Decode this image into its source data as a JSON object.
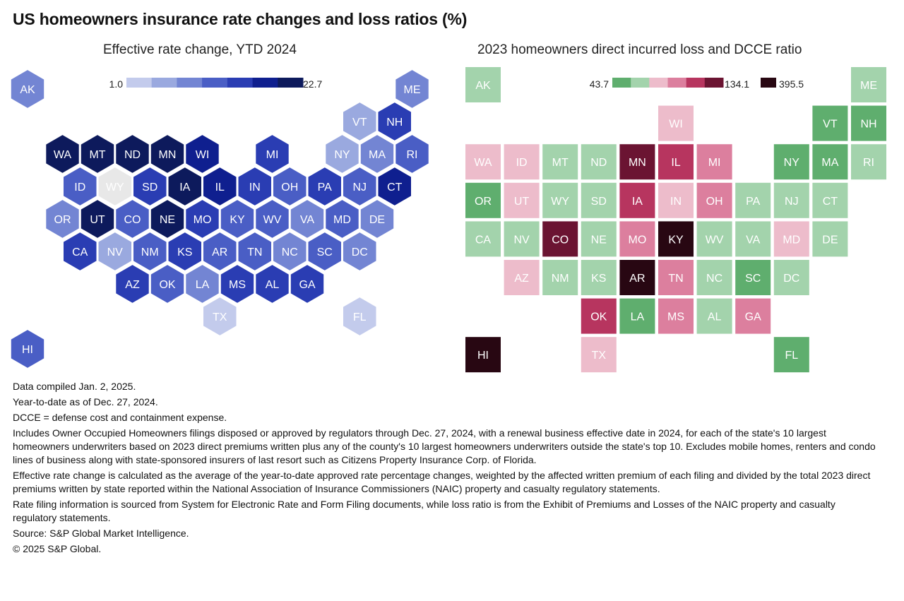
{
  "title": "US homeowners insurance rate changes and loss ratios (%)",
  "left_panel": {
    "subtitle": "Effective rate change, YTD 2024",
    "legend_min": "1.0",
    "legend_max": "22.7"
  },
  "right_panel": {
    "subtitle": "2023 homeowners direct incurred loss and DCCE ratio",
    "legend_min": "43.7",
    "legend_mid": "134.1",
    "legend_max": "395.5"
  },
  "notes": {
    "compiled": "Data compiled Jan. 2, 2025.",
    "ytd": "Year-to-date as of Dec. 27, 2024.",
    "dcce": "DCCE = defense cost and containment expense.",
    "includes": "Includes Owner Occupied Homeowners filings disposed or approved by regulators through Dec. 27, 2024, with a renewal business effective date in 2024, for each of the state's 10 largest homeowners underwriters based on 2023 direct premiums written plus any of the county's 10 largest homeowners underwriters outside the state's top 10. Excludes mobile homes, renters and condo lines of business along with state-sponsored insurers of last resort such as Citizens Property Insurance Corp. of Florida.",
    "method": "Effective rate change is calculated as the average of the year-to-date approved rate percentage changes, weighted by the affected written premium of each filing and divided by the total 2023 direct premiums written by state reported within the National Association of Insurance Commissioners (NAIC) property and casualty regulatory statements.",
    "sources_info": "Rate filing information is sourced from System for Electronic Rate and Form Filing documents, while loss ratio is from the Exhibit of Premiums and Losses of the NAIC property and casualty regulatory statements.",
    "source": "Source: S&P Global Market Intelligence.",
    "copyright": "© 2025 S&P Global."
  },
  "colors": {
    "blue_scale": [
      "#c3cbec",
      "#9aa9df",
      "#7385d3",
      "#4a5ec5",
      "#2a3db3",
      "#0f1f8f",
      "#0d1a5c"
    ],
    "no_data": "#e8e8e8",
    "ratio_scale": [
      "#5fae6e",
      "#a3d3ac",
      "#edbccb",
      "#dc7f9e",
      "#b7355f",
      "#6b1432",
      "#280712"
    ]
  },
  "chart_data": [
    {
      "type": "heatmap",
      "title": "Effective rate change, YTD 2024",
      "legend": {
        "min": 1.0,
        "max": 22.7,
        "steps": 7
      },
      "cells": [
        {
          "state": "AK",
          "bin": 2
        },
        {
          "state": "ME",
          "bin": 2
        },
        {
          "state": "VT",
          "bin": 1
        },
        {
          "state": "NH",
          "bin": 4
        },
        {
          "state": "WA",
          "bin": 6
        },
        {
          "state": "MT",
          "bin": 6
        },
        {
          "state": "ND",
          "bin": 6
        },
        {
          "state": "MN",
          "bin": 6
        },
        {
          "state": "WI",
          "bin": 5
        },
        {
          "state": "MI",
          "bin": 4
        },
        {
          "state": "NY",
          "bin": 1
        },
        {
          "state": "MA",
          "bin": 2
        },
        {
          "state": "RI",
          "bin": 3
        },
        {
          "state": "ID",
          "bin": 3
        },
        {
          "state": "WY",
          "bin": null
        },
        {
          "state": "SD",
          "bin": 4
        },
        {
          "state": "IA",
          "bin": 6
        },
        {
          "state": "IL",
          "bin": 5
        },
        {
          "state": "IN",
          "bin": 4
        },
        {
          "state": "OH",
          "bin": 3
        },
        {
          "state": "PA",
          "bin": 4
        },
        {
          "state": "NJ",
          "bin": 3
        },
        {
          "state": "CT",
          "bin": 5
        },
        {
          "state": "OR",
          "bin": 2
        },
        {
          "state": "UT",
          "bin": 6
        },
        {
          "state": "CO",
          "bin": 3
        },
        {
          "state": "NE",
          "bin": 6
        },
        {
          "state": "MO",
          "bin": 4
        },
        {
          "state": "KY",
          "bin": 3
        },
        {
          "state": "WV",
          "bin": 3
        },
        {
          "state": "VA",
          "bin": 2
        },
        {
          "state": "MD",
          "bin": 3
        },
        {
          "state": "DE",
          "bin": 2
        },
        {
          "state": "CA",
          "bin": 4
        },
        {
          "state": "NV",
          "bin": 1
        },
        {
          "state": "NM",
          "bin": 3
        },
        {
          "state": "KS",
          "bin": 4
        },
        {
          "state": "AR",
          "bin": 3
        },
        {
          "state": "TN",
          "bin": 3
        },
        {
          "state": "NC",
          "bin": 2
        },
        {
          "state": "SC",
          "bin": 3
        },
        {
          "state": "DC",
          "bin": 2
        },
        {
          "state": "AZ",
          "bin": 4
        },
        {
          "state": "OK",
          "bin": 3
        },
        {
          "state": "LA",
          "bin": 2
        },
        {
          "state": "MS",
          "bin": 4
        },
        {
          "state": "AL",
          "bin": 4
        },
        {
          "state": "GA",
          "bin": 4
        },
        {
          "state": "TX",
          "bin": 0
        },
        {
          "state": "FL",
          "bin": 0
        },
        {
          "state": "HI",
          "bin": 3
        }
      ]
    },
    {
      "type": "heatmap",
      "title": "2023 homeowners direct incurred loss and DCCE ratio",
      "legend": {
        "min": 43.7,
        "mid": 134.1,
        "max": 395.5,
        "steps": 7
      },
      "cells": [
        {
          "state": "AK",
          "bin": 1
        },
        {
          "state": "ME",
          "bin": 1
        },
        {
          "state": "WI",
          "bin": 2
        },
        {
          "state": "VT",
          "bin": 0
        },
        {
          "state": "NH",
          "bin": 0
        },
        {
          "state": "WA",
          "bin": 2
        },
        {
          "state": "ID",
          "bin": 2
        },
        {
          "state": "MT",
          "bin": 1
        },
        {
          "state": "ND",
          "bin": 1
        },
        {
          "state": "MN",
          "bin": 5
        },
        {
          "state": "IL",
          "bin": 4
        },
        {
          "state": "MI",
          "bin": 3
        },
        {
          "state": "NY",
          "bin": 0
        },
        {
          "state": "MA",
          "bin": 0
        },
        {
          "state": "RI",
          "bin": 1
        },
        {
          "state": "OR",
          "bin": 0
        },
        {
          "state": "UT",
          "bin": 2
        },
        {
          "state": "WY",
          "bin": 1
        },
        {
          "state": "SD",
          "bin": 1
        },
        {
          "state": "IA",
          "bin": 4
        },
        {
          "state": "IN",
          "bin": 2
        },
        {
          "state": "OH",
          "bin": 3
        },
        {
          "state": "PA",
          "bin": 1
        },
        {
          "state": "NJ",
          "bin": 1
        },
        {
          "state": "CT",
          "bin": 1
        },
        {
          "state": "CA",
          "bin": 1
        },
        {
          "state": "NV",
          "bin": 1
        },
        {
          "state": "CO",
          "bin": 5
        },
        {
          "state": "NE",
          "bin": 1
        },
        {
          "state": "MO",
          "bin": 3
        },
        {
          "state": "KY",
          "bin": 6
        },
        {
          "state": "WV",
          "bin": 1
        },
        {
          "state": "VA",
          "bin": 1
        },
        {
          "state": "MD",
          "bin": 2
        },
        {
          "state": "DE",
          "bin": 1
        },
        {
          "state": "AZ",
          "bin": 2
        },
        {
          "state": "NM",
          "bin": 1
        },
        {
          "state": "KS",
          "bin": 1
        },
        {
          "state": "AR",
          "bin": 6
        },
        {
          "state": "TN",
          "bin": 3
        },
        {
          "state": "NC",
          "bin": 1
        },
        {
          "state": "SC",
          "bin": 0
        },
        {
          "state": "DC",
          "bin": 1
        },
        {
          "state": "OK",
          "bin": 4
        },
        {
          "state": "LA",
          "bin": 0
        },
        {
          "state": "MS",
          "bin": 3
        },
        {
          "state": "AL",
          "bin": 1
        },
        {
          "state": "GA",
          "bin": 3
        },
        {
          "state": "HI",
          "bin": 6
        },
        {
          "state": "TX",
          "bin": 2
        },
        {
          "state": "FL",
          "bin": 0
        }
      ]
    }
  ]
}
